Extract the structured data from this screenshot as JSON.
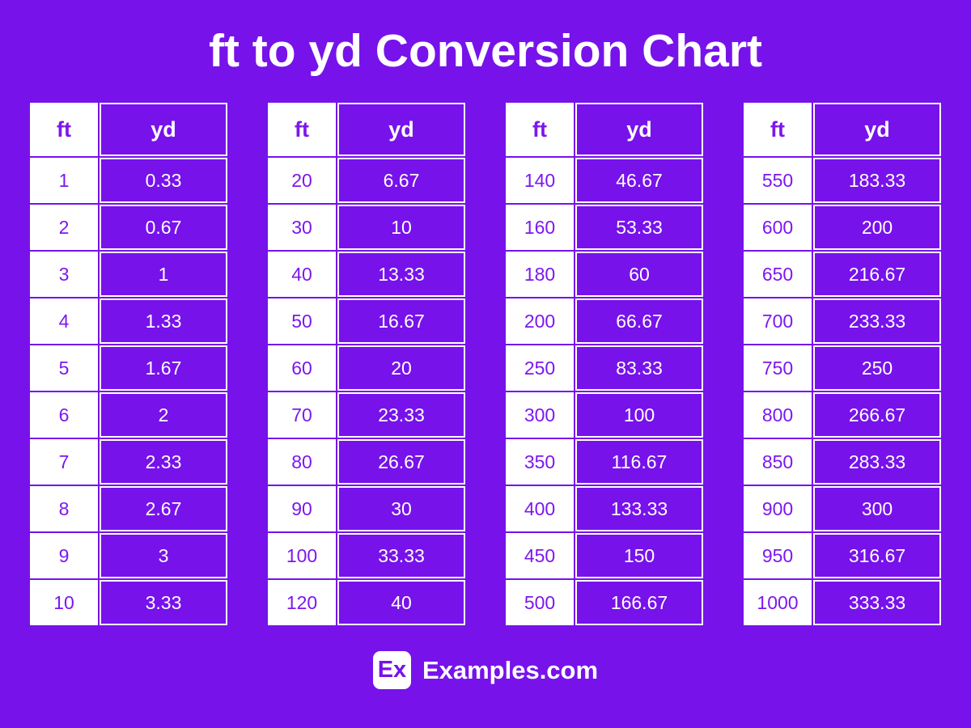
{
  "title": "ft to yd Conversion Chart",
  "colors": {
    "background": "#7712EB",
    "cell_purple": "#7712EB",
    "white": "#FFFFFF",
    "ft_text_purple": "#7D17EE"
  },
  "column_headers": {
    "ft": "ft",
    "yd": "yd"
  },
  "tables": [
    {
      "rows": [
        {
          "ft": "1",
          "yd": "0.33"
        },
        {
          "ft": "2",
          "yd": "0.67"
        },
        {
          "ft": "3",
          "yd": "1"
        },
        {
          "ft": "4",
          "yd": "1.33"
        },
        {
          "ft": "5",
          "yd": "1.67"
        },
        {
          "ft": "6",
          "yd": "2"
        },
        {
          "ft": "7",
          "yd": "2.33"
        },
        {
          "ft": "8",
          "yd": "2.67"
        },
        {
          "ft": "9",
          "yd": "3"
        },
        {
          "ft": "10",
          "yd": "3.33"
        }
      ]
    },
    {
      "rows": [
        {
          "ft": "20",
          "yd": "6.67"
        },
        {
          "ft": "30",
          "yd": "10"
        },
        {
          "ft": "40",
          "yd": "13.33"
        },
        {
          "ft": "50",
          "yd": "16.67"
        },
        {
          "ft": "60",
          "yd": "20"
        },
        {
          "ft": "70",
          "yd": "23.33"
        },
        {
          "ft": "80",
          "yd": "26.67"
        },
        {
          "ft": "90",
          "yd": "30"
        },
        {
          "ft": "100",
          "yd": "33.33"
        },
        {
          "ft": "120",
          "yd": "40"
        }
      ]
    },
    {
      "rows": [
        {
          "ft": "140",
          "yd": "46.67"
        },
        {
          "ft": "160",
          "yd": "53.33"
        },
        {
          "ft": "180",
          "yd": "60"
        },
        {
          "ft": "200",
          "yd": "66.67"
        },
        {
          "ft": "250",
          "yd": "83.33"
        },
        {
          "ft": "300",
          "yd": "100"
        },
        {
          "ft": "350",
          "yd": "116.67"
        },
        {
          "ft": "400",
          "yd": "133.33"
        },
        {
          "ft": "450",
          "yd": "150"
        },
        {
          "ft": "500",
          "yd": "166.67"
        }
      ]
    },
    {
      "rows": [
        {
          "ft": "550",
          "yd": "183.33"
        },
        {
          "ft": "600",
          "yd": "200"
        },
        {
          "ft": "650",
          "yd": "216.67"
        },
        {
          "ft": "700",
          "yd": "233.33"
        },
        {
          "ft": "750",
          "yd": "250"
        },
        {
          "ft": "800",
          "yd": "266.67"
        },
        {
          "ft": "850",
          "yd": "283.33"
        },
        {
          "ft": "900",
          "yd": "300"
        },
        {
          "ft": "950",
          "yd": "316.67"
        },
        {
          "ft": "1000",
          "yd": "333.33"
        }
      ]
    }
  ],
  "footer": {
    "logo_text": "Ex",
    "site_name": "Examples.com"
  }
}
